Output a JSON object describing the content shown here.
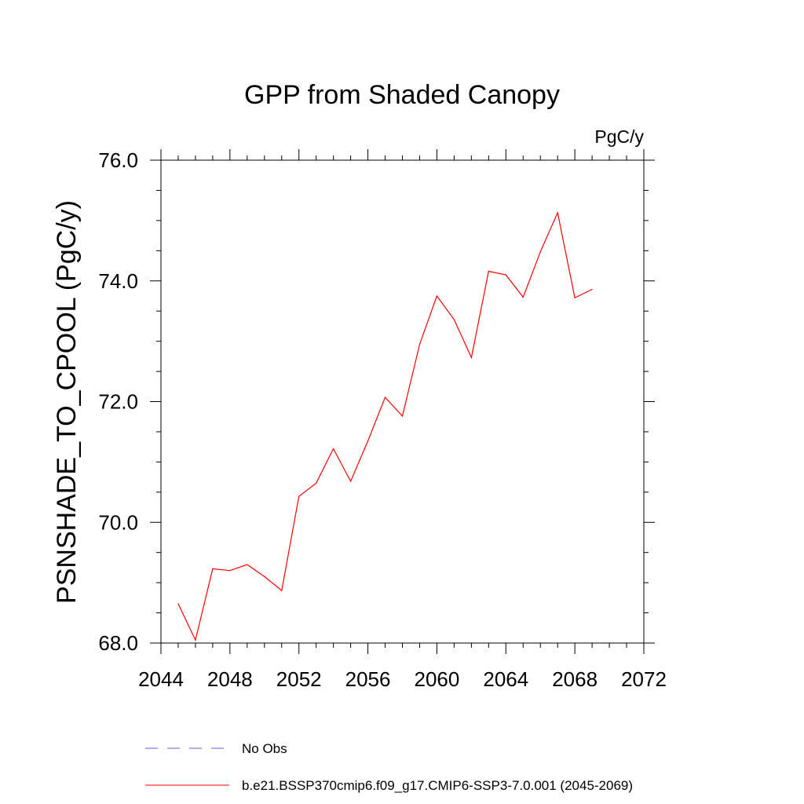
{
  "chart_data": {
    "type": "line",
    "title": "GPP from Shaded Canopy",
    "units": "PgC/y",
    "ylabel": "PSNSHADE_TO_CPOOL  (PgC/y)",
    "xlabel": "",
    "xlim": [
      2044,
      2072
    ],
    "ylim": [
      68.0,
      76.0
    ],
    "x_ticks": [
      "2044",
      "2048",
      "2052",
      "2056",
      "2060",
      "2064",
      "2068",
      "2072"
    ],
    "y_ticks": [
      "68.0",
      "70.0",
      "72.0",
      "74.0",
      "76.0"
    ],
    "grid": false,
    "legend_position": "bottom",
    "legend": [
      {
        "label": "No Obs",
        "color": "#6a5acd",
        "style": "dashed"
      },
      {
        "label": "b.e21.BSSP370cmip6.f09_g17.CMIP6-SSP3-7.0.001 (2045-2069)",
        "color": "#ff0000",
        "style": "solid"
      }
    ],
    "series": [
      {
        "name": "b.e21.BSSP370cmip6.f09_g17.CMIP6-SSP3-7.0.001 (2045-2069)",
        "color": "#ff0000",
        "x": [
          2045,
          2046,
          2047,
          2048,
          2049,
          2050,
          2051,
          2052,
          2053,
          2054,
          2055,
          2056,
          2057,
          2058,
          2059,
          2060,
          2061,
          2062,
          2063,
          2064,
          2065,
          2066,
          2067,
          2068,
          2069
        ],
        "y": [
          68.65,
          68.05,
          69.23,
          69.2,
          69.3,
          69.1,
          68.87,
          70.43,
          70.65,
          71.22,
          70.68,
          71.35,
          72.07,
          71.76,
          72.95,
          73.75,
          73.36,
          72.73,
          74.16,
          74.1,
          73.73,
          74.48,
          75.13,
          73.72,
          73.86
        ]
      }
    ]
  }
}
